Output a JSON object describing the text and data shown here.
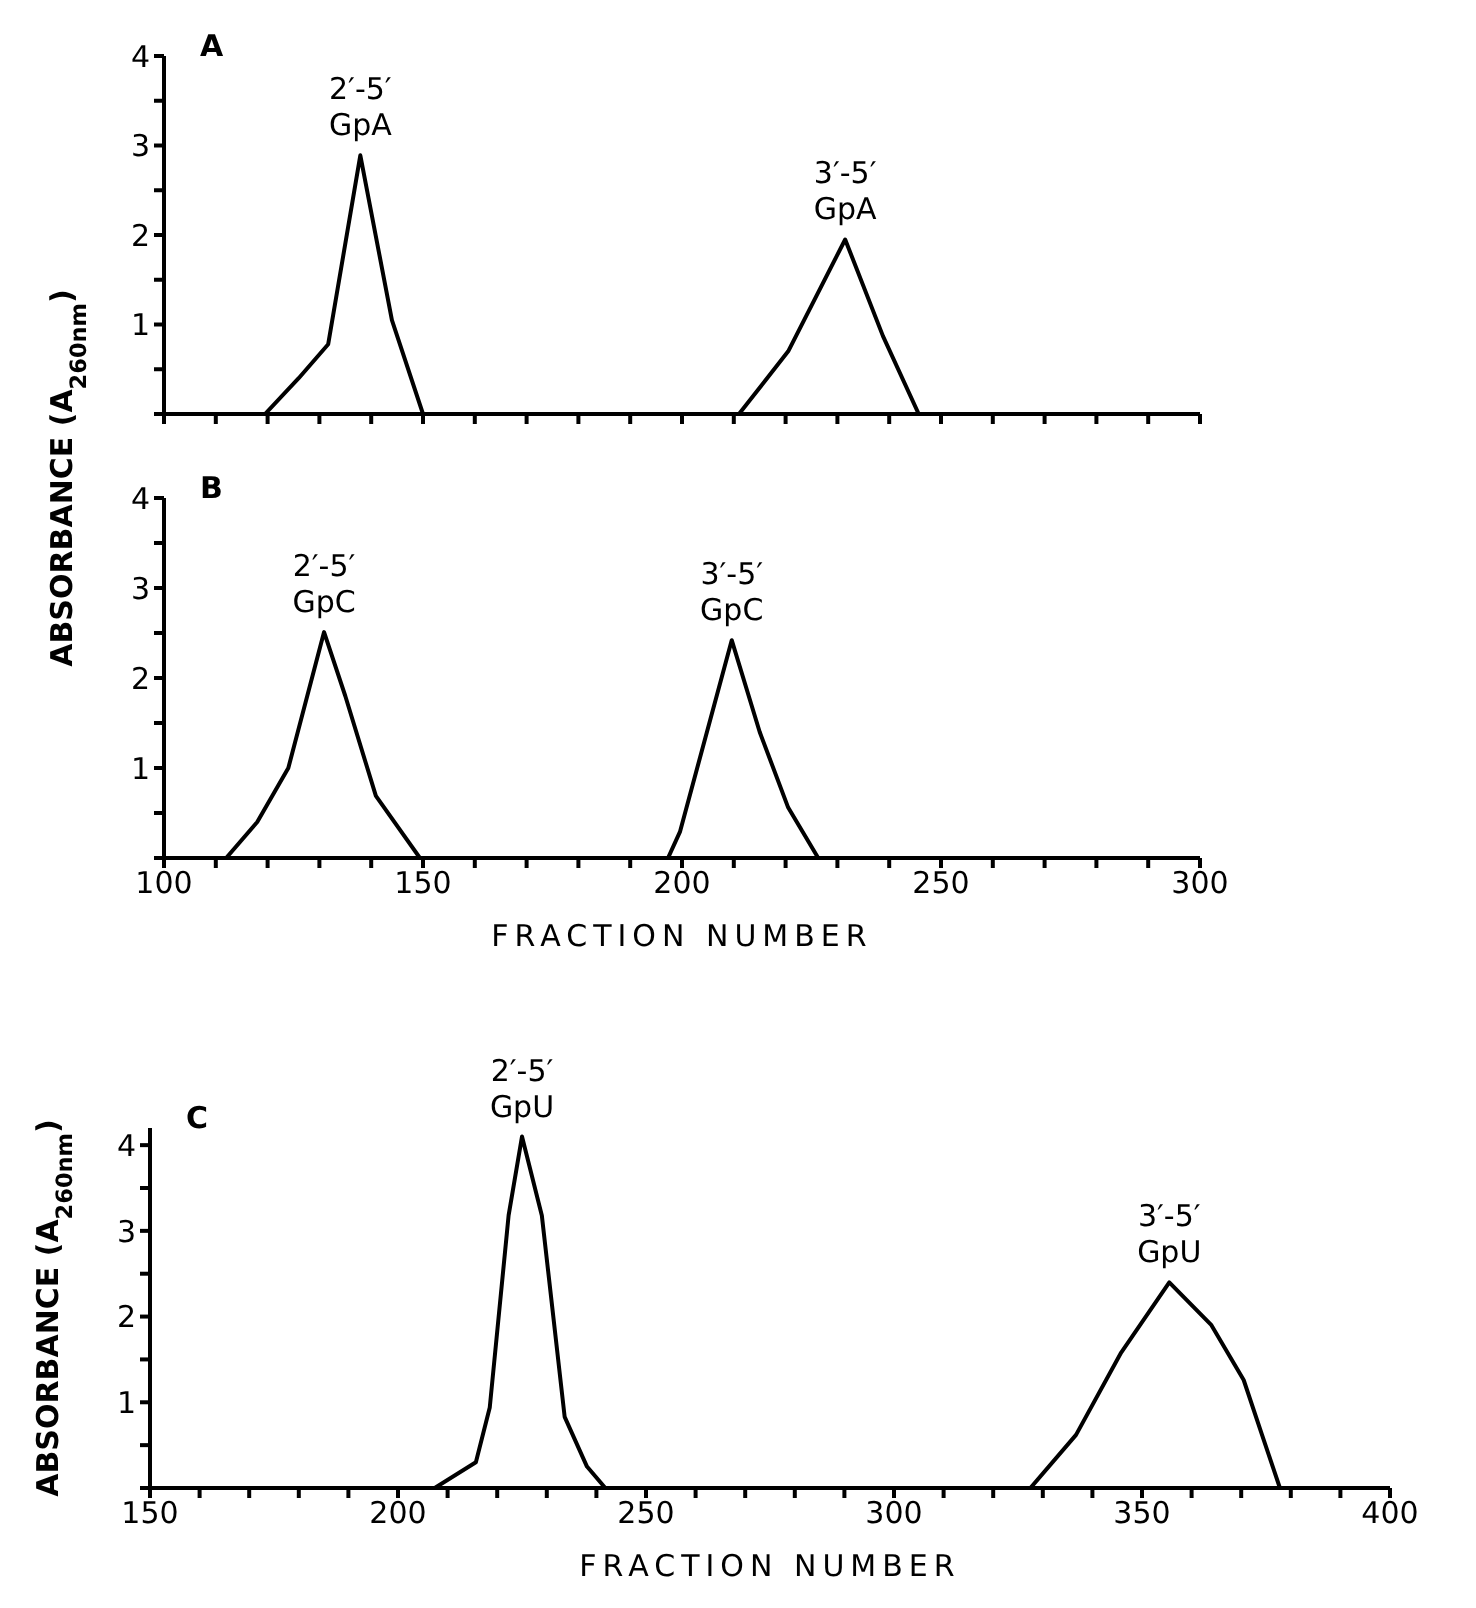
{
  "chart_data": [
    {
      "type": "line",
      "title": "A",
      "ylabel": "ABSORBANCE (A$_{260nm}$)",
      "marker": "none",
      "tick_labels": "y",
      "series": [
        {
          "color": "#000000",
          "x": [
            100,
            119.5,
            126,
            131.7,
            137.9,
            144,
            150,
            211,
            220.5,
            231.5,
            238.8,
            245.7,
            300
          ],
          "values": [
            0,
            0,
            0.4,
            0.78,
            2.89,
            1.05,
            0,
            0,
            0.7,
            1.95,
            0.87,
            0,
            0
          ]
        }
      ],
      "xlim": [
        100,
        300
      ],
      "ylim": [
        0,
        4
      ],
      "xticks": [
        {
          "value": 100,
          "label": null
        },
        {
          "value": 110,
          "label": null
        },
        {
          "value": 120,
          "label": null
        },
        {
          "value": 130,
          "label": null
        },
        {
          "value": 140,
          "label": null
        },
        {
          "value": 150,
          "label": null
        },
        {
          "value": 160,
          "label": null
        },
        {
          "value": 170,
          "label": null
        },
        {
          "value": 180,
          "label": null
        },
        {
          "value": 190,
          "label": null
        },
        {
          "value": 200,
          "label": null
        },
        {
          "value": 210,
          "label": null
        },
        {
          "value": 220,
          "label": null
        },
        {
          "value": 230,
          "label": null
        },
        {
          "value": 240,
          "label": null
        },
        {
          "value": 250,
          "label": null
        },
        {
          "value": 260,
          "label": null
        },
        {
          "value": 270,
          "label": null
        },
        {
          "value": 280,
          "label": null
        },
        {
          "value": 290,
          "label": null
        },
        {
          "value": 300,
          "label": null
        }
      ],
      "yticks": [
        {
          "value": 0,
          "label": null
        },
        {
          "value": 0.5,
          "label": null
        },
        1,
        {
          "value": 1.5,
          "label": null
        },
        2,
        {
          "value": 2.5,
          "label": null
        },
        3,
        {
          "value": 3.5,
          "label": null
        },
        4
      ],
      "annotations": [
        {
          "text": "2′-5′\nGpA",
          "x": 137.9,
          "y": 2.89
        },
        {
          "text": "3′-5′\nGpA",
          "x": 231.5,
          "y": 1.95
        }
      ]
    },
    {
      "type": "line",
      "title": "B",
      "xlabel": "FRACTION NUMBER",
      "marker": "none",
      "series": [
        {
          "color": "#000000",
          "x": [
            100,
            112,
            118,
            124,
            130.9,
            135,
            140.9,
            149.4,
            197.3,
            199.6,
            209.6,
            215,
            220.5,
            226.3,
            300
          ],
          "values": [
            0,
            0,
            0.4,
            1.0,
            2.51,
            1.8,
            0.69,
            0,
            0,
            0.29,
            2.42,
            1.4,
            0.56,
            0,
            0
          ]
        }
      ],
      "xlim": [
        100,
        300
      ],
      "ylim": [
        0,
        4
      ],
      "xticks": [
        100,
        {
          "value": 110,
          "label": null
        },
        {
          "value": 120,
          "label": null
        },
        {
          "value": 130,
          "label": null
        },
        {
          "value": 140,
          "label": null
        },
        150,
        {
          "value": 160,
          "label": null
        },
        {
          "value": 170,
          "label": null
        },
        {
          "value": 180,
          "label": null
        },
        {
          "value": 190,
          "label": null
        },
        200,
        {
          "value": 210,
          "label": null
        },
        {
          "value": 220,
          "label": null
        },
        {
          "value": 230,
          "label": null
        },
        {
          "value": 240,
          "label": null
        },
        250,
        {
          "value": 260,
          "label": null
        },
        {
          "value": 270,
          "label": null
        },
        {
          "value": 280,
          "label": null
        },
        {
          "value": 290,
          "label": null
        },
        300
      ],
      "yticks": [
        {
          "value": 0,
          "label": null
        },
        {
          "value": 0.5,
          "label": null
        },
        1,
        {
          "value": 1.5,
          "label": null
        },
        2,
        {
          "value": 2.5,
          "label": null
        },
        3,
        {
          "value": 3.5,
          "label": null
        },
        4
      ],
      "annotations": [
        {
          "text": "2′-5′\nGpC",
          "x": 130.9,
          "y": 2.51
        },
        {
          "text": "3′-5′\nGpC",
          "x": 209.6,
          "y": 2.42
        }
      ]
    },
    {
      "type": "line",
      "title": "C",
      "xlabel": "FRACTION NUMBER",
      "ylabel": "ABSORBANCE (A$_{260nm}$)",
      "marker": "none",
      "series": [
        {
          "color": "#000000",
          "x": [
            150,
            207.4,
            215.7,
            218.5,
            222.3,
            225,
            229,
            233.6,
            238.1,
            241.8,
            327.5,
            336.7,
            345.8,
            355.5,
            364,
            370.5,
            374.2,
            377.8,
            400
          ],
          "values": [
            0,
            0,
            0.3,
            0.94,
            3.18,
            4.1,
            3.18,
            0.83,
            0.25,
            0,
            0,
            0.62,
            1.58,
            2.4,
            1.9,
            1.26,
            0.62,
            0,
            0
          ]
        }
      ],
      "xlim": [
        150,
        400
      ],
      "ylim": [
        0,
        4.2
      ],
      "xticks": [
        150,
        {
          "value": 160,
          "label": null
        },
        {
          "value": 170,
          "label": null
        },
        {
          "value": 180,
          "label": null
        },
        {
          "value": 190,
          "label": null
        },
        200,
        {
          "value": 210,
          "label": null
        },
        {
          "value": 220,
          "label": null
        },
        {
          "value": 230,
          "label": null
        },
        {
          "value": 240,
          "label": null
        },
        250,
        {
          "value": 260,
          "label": null
        },
        {
          "value": 270,
          "label": null
        },
        {
          "value": 280,
          "label": null
        },
        {
          "value": 290,
          "label": null
        },
        300,
        {
          "value": 310,
          "label": null
        },
        {
          "value": 320,
          "label": null
        },
        {
          "value": 330,
          "label": null
        },
        {
          "value": 340,
          "label": null
        },
        350,
        {
          "value": 360,
          "label": null
        },
        {
          "value": 370,
          "label": null
        },
        {
          "value": 380,
          "label": null
        },
        {
          "value": 390,
          "label": null
        },
        400
      ],
      "yticks": [
        {
          "value": 0,
          "label": null
        },
        {
          "value": 0.5,
          "label": null
        },
        1,
        {
          "value": 1.5,
          "label": null
        },
        2,
        {
          "value": 2.5,
          "label": null
        },
        3,
        {
          "value": 3.5,
          "label": null
        },
        4
      ],
      "annotations": [
        {
          "text": "2′-5′\nGpU",
          "x": 225,
          "y": 4.1
        },
        {
          "text": "3′-5′\nGpU",
          "x": 355.5,
          "y": 2.4
        }
      ]
    }
  ]
}
